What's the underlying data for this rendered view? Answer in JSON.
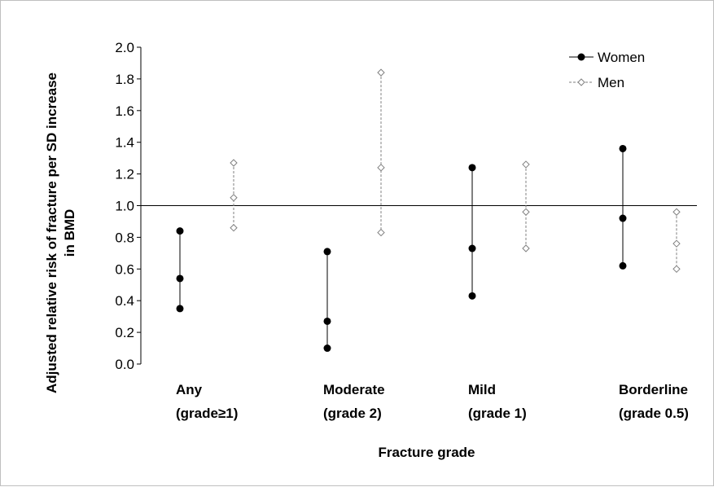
{
  "chart_data": {
    "type": "scatter",
    "title": "",
    "xlabel": "Fracture grade",
    "ylabel_line1": "Adjusted relative risk of fracture per SD increase",
    "ylabel_line2": "in BMD",
    "ylim": [
      0.0,
      2.0
    ],
    "yticks": [
      "0.0",
      "0.2",
      "0.4",
      "0.6",
      "0.8",
      "1.0",
      "1.2",
      "1.4",
      "1.6",
      "1.8",
      "2.0"
    ],
    "ytick_values": [
      0.0,
      0.2,
      0.4,
      0.6,
      0.8,
      1.0,
      1.2,
      1.4,
      1.6,
      1.8,
      2.0
    ],
    "reference_line": 1.0,
    "grid": false,
    "legend_position": "top-right",
    "categories": [
      {
        "line1": "Any",
        "line2": "(grade≥1)"
      },
      {
        "line1": "Moderate",
        "line2": "(grade 2)"
      },
      {
        "line1": "Mild",
        "line2": "(grade 1)"
      },
      {
        "line1": "Borderline",
        "line2": "(grade 0.5)"
      }
    ],
    "series": [
      {
        "name": "Women",
        "style": "solid-filled-circle",
        "color": "#000000",
        "estimate": [
          0.54,
          0.27,
          0.73,
          0.92
        ],
        "lower": [
          0.35,
          0.1,
          0.43,
          0.62
        ],
        "upper": [
          0.84,
          0.71,
          1.24,
          1.36
        ]
      },
      {
        "name": "Men",
        "style": "dashed-open-diamond",
        "color": "#7f7f7f",
        "estimate": [
          1.05,
          1.24,
          0.96,
          0.76
        ],
        "lower": [
          0.86,
          0.83,
          0.73,
          0.6
        ],
        "upper": [
          1.27,
          1.84,
          1.26,
          0.96
        ]
      }
    ]
  }
}
